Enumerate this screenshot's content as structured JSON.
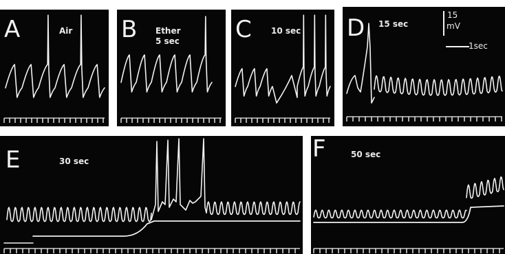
{
  "figure": {
    "background": "#060606",
    "trace_color": "#f2f2f2"
  },
  "panels": [
    {
      "id": "A",
      "letter": "A",
      "condition_lines": [
        "Air"
      ],
      "pattern": "spikes"
    },
    {
      "id": "B",
      "letter": "B",
      "condition_lines": [
        "Ether",
        "5 sec"
      ],
      "pattern": "spikes"
    },
    {
      "id": "C",
      "letter": "C",
      "condition_lines": [
        "10 sec"
      ],
      "pattern": "spikes-rebound"
    },
    {
      "id": "D",
      "letter": "D",
      "condition_lines": [
        "15 sec"
      ],
      "pattern": "oscillation"
    },
    {
      "id": "E",
      "letter": "E",
      "condition_lines": [
        "30 sec"
      ],
      "pattern": "oscillation-step-burst"
    },
    {
      "id": "F",
      "letter": "F",
      "condition_lines": [
        "50 sec"
      ],
      "pattern": "oscillation-step"
    }
  ],
  "scale_bar": {
    "voltage_value": "15",
    "voltage_unit": "mV",
    "time_label": "1sec"
  }
}
